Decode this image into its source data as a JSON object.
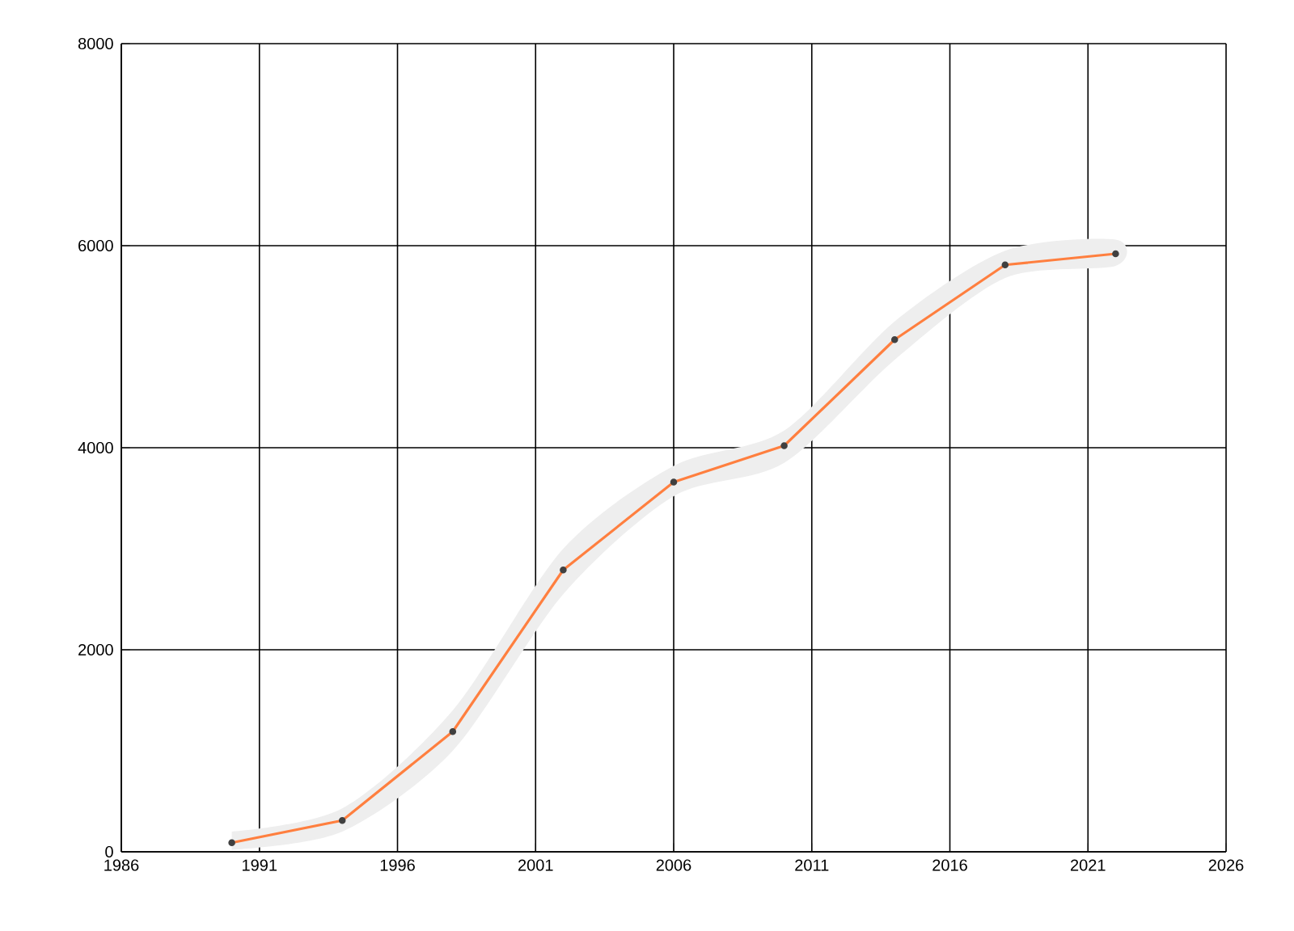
{
  "chart_data": {
    "type": "line",
    "x": [
      1990,
      1994,
      1998,
      2002,
      2006,
      2010,
      2014,
      2018,
      2022
    ],
    "series": [
      {
        "color": "#ff7f3f",
        "values": [
          90,
          310,
          1190,
          2790,
          3660,
          4020,
          5070,
          5810,
          5920
        ],
        "lower": [
          20,
          200,
          1000,
          2550,
          3520,
          3850,
          4870,
          5680,
          5800
        ],
        "upper": [
          200,
          430,
          1400,
          3000,
          3820,
          4170,
          5250,
          5950,
          6060
        ]
      }
    ],
    "xlim": [
      1986,
      2026
    ],
    "xticks": [
      1986,
      1991,
      1996,
      2001,
      2006,
      2011,
      2016,
      2021,
      2026
    ],
    "ylim": [
      0,
      8000
    ],
    "yticks": [
      0,
      2000,
      4000,
      6000,
      8000
    ],
    "grid": true,
    "marker": "circle",
    "line_style": "solid"
  }
}
